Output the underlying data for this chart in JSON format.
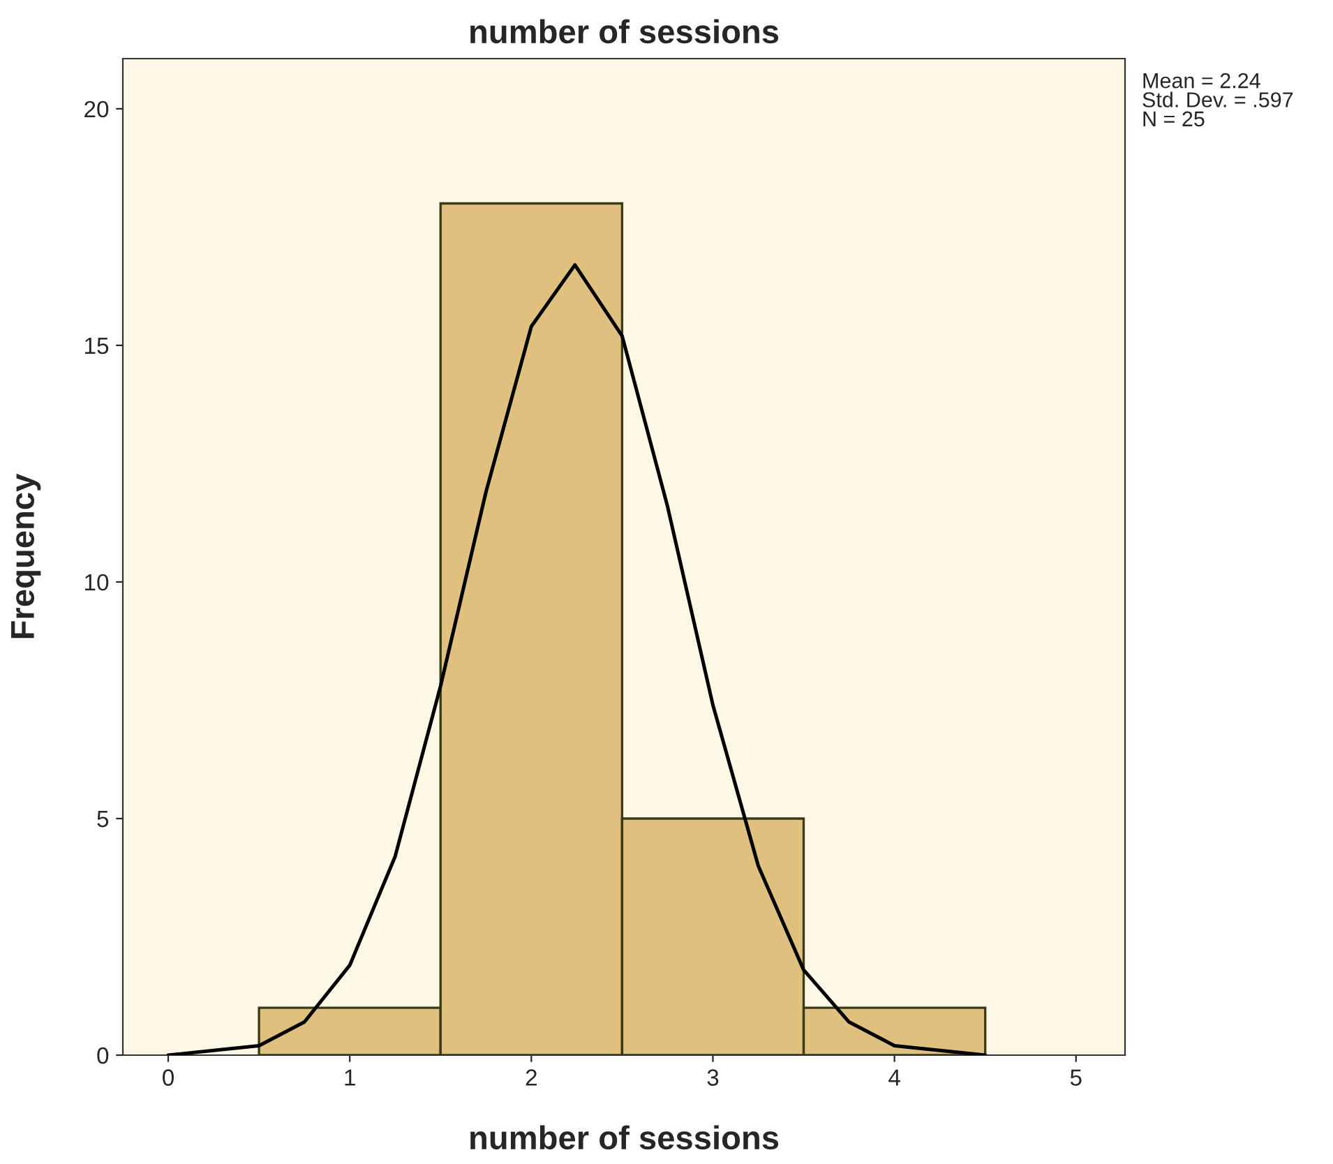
{
  "chart_data": {
    "type": "histogram",
    "title": "number of sessions",
    "xlabel": "number of sessions",
    "ylabel": "Frequency",
    "bins": [
      0.5,
      1.5,
      2.5,
      3.5,
      4.5
    ],
    "values": [
      1,
      18,
      5,
      1
    ],
    "color": "#dfc07f",
    "series": [
      {
        "type": "line",
        "color": "#000000",
        "x": [
          0,
          0.25,
          0.5,
          0.75,
          1.0,
          1.25,
          1.5,
          1.75,
          2.0,
          2.24,
          2.5,
          2.75,
          3.0,
          3.25,
          3.5,
          3.75,
          4.0,
          4.25,
          4.5
        ],
        "values": [
          0.0,
          0.1,
          0.2,
          0.7,
          1.9,
          4.2,
          7.8,
          11.9,
          15.4,
          16.7,
          15.2,
          11.6,
          7.4,
          4.0,
          1.8,
          0.7,
          0.2,
          0.1,
          0.0
        ]
      }
    ],
    "xlim": [
      -0.25,
      5.27
    ],
    "xticks": [
      0,
      1,
      2,
      3,
      4,
      5
    ],
    "ylim": [
      0,
      21.06
    ],
    "yticks": [
      0,
      5,
      10,
      15,
      20
    ],
    "grid": false,
    "legend": false,
    "annotations": [
      "Mean = 2.24\nStd. Dev. = .597\nN = 25"
    ]
  }
}
